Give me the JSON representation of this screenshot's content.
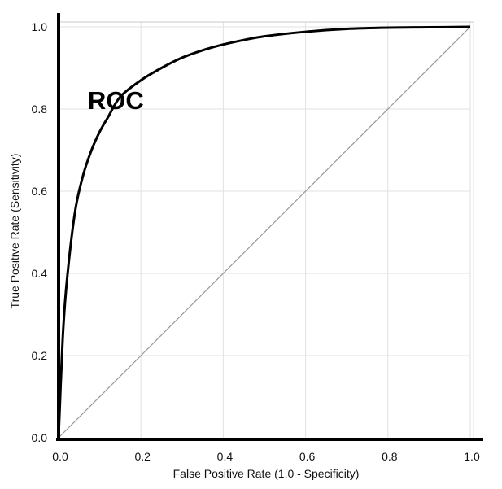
{
  "chart_data": {
    "type": "line",
    "title": "",
    "xlabel": "False Positive Rate (1.0 - Specificity)",
    "ylabel": "True Positive Rate (Sensitivity)",
    "xlim": [
      0,
      1
    ],
    "ylim": [
      0,
      1
    ],
    "x_ticks": [
      "0.0",
      "0.2",
      "0.4",
      "0.6",
      "0.8",
      "1.0"
    ],
    "y_ticks": [
      "0.0",
      "0.2",
      "0.4",
      "0.6",
      "0.8",
      "1.0"
    ],
    "grid": true,
    "annotations": [
      {
        "text": "ROC",
        "x": 0.14,
        "y": 0.85
      }
    ],
    "series": [
      {
        "name": "ROC",
        "x": [
          0,
          0.01,
          0.02,
          0.04,
          0.06,
          0.08,
          0.1,
          0.12,
          0.15,
          0.2,
          0.25,
          0.3,
          0.35,
          0.4,
          0.45,
          0.5,
          0.6,
          0.7,
          0.8,
          0.9,
          1.0
        ],
        "y": [
          0,
          0.24,
          0.38,
          0.55,
          0.64,
          0.7,
          0.745,
          0.78,
          0.83,
          0.87,
          0.9,
          0.925,
          0.943,
          0.957,
          0.968,
          0.977,
          0.988,
          0.995,
          0.998,
          0.999,
          1.0
        ],
        "color": "#000000"
      },
      {
        "name": "",
        "x": [
          0,
          1
        ],
        "y": [
          0,
          1
        ],
        "color": "#999999"
      }
    ]
  }
}
